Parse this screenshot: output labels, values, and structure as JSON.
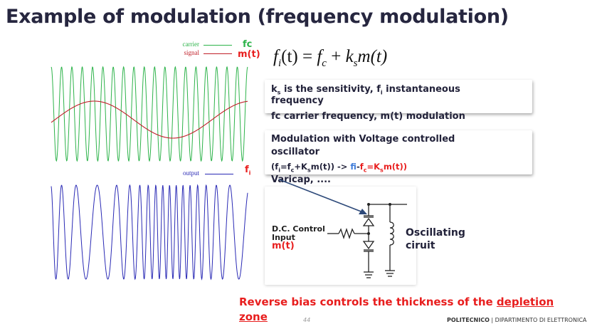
{
  "title": "Example of modulation (frequency modulation)",
  "legend": {
    "carrier_label": "carrier",
    "carrier_symbol": "fc",
    "carrier_color": "#2db34a",
    "signal_label": "signal",
    "signal_symbol": "m(t)",
    "signal_color": "#c0202a",
    "output_label": "output",
    "output_symbol": "f",
    "output_symbol_sub": "i",
    "output_color": "#2a2ab5"
  },
  "formula": {
    "lhs": "f",
    "lhs_sub": "i",
    "lhs_arg": "(t) = ",
    "fc": "f",
    "fc_sub": "c",
    "plus": " + ",
    "k": "k",
    "k_sub": "s",
    "mt": "m(t)"
  },
  "box1": {
    "ks": "k",
    "ks_sub": "s",
    "line1_rest": " is the sensitivity, f",
    "fi_sub": "i",
    "line1_end": " instantaneous",
    "line2": "frequency",
    "line3": "fc carrier frequency, m(t) modulation"
  },
  "box2": {
    "line1": "Modulation with Voltage controlled",
    "line2": "oscillator",
    "eq_open": "(f",
    "eq_i": "i",
    "eq_mid": "=f",
    "eq_c": "c",
    "eq_plus": "+K",
    "eq_s": "s",
    "eq_close": "m(t)) -> ",
    "eq_fi": "fi",
    "eq_dash": "-",
    "eq_fc": "f",
    "eq_fc_sub": "c",
    "eq_eq": "=K",
    "eq_ks_sub": "s",
    "eq_mt": "m(t))",
    "line4": "Varicap, ...."
  },
  "circuit": {
    "dc_line1": "D.C. Control",
    "dc_line2": "Input",
    "dc_mt": "m(t)",
    "osc_line1": "Oscillating",
    "osc_line2": "ciruit"
  },
  "bottom": {
    "text": "Reverse bias controls the thickness of the ",
    "underlined_1": "depletion",
    "underlined_2": "zone"
  },
  "footer": {
    "page": "44",
    "org": "POLITECNICO",
    "sep": " | ",
    "dept": "DIPARTIMENTO DI ELETTRONICA"
  }
}
